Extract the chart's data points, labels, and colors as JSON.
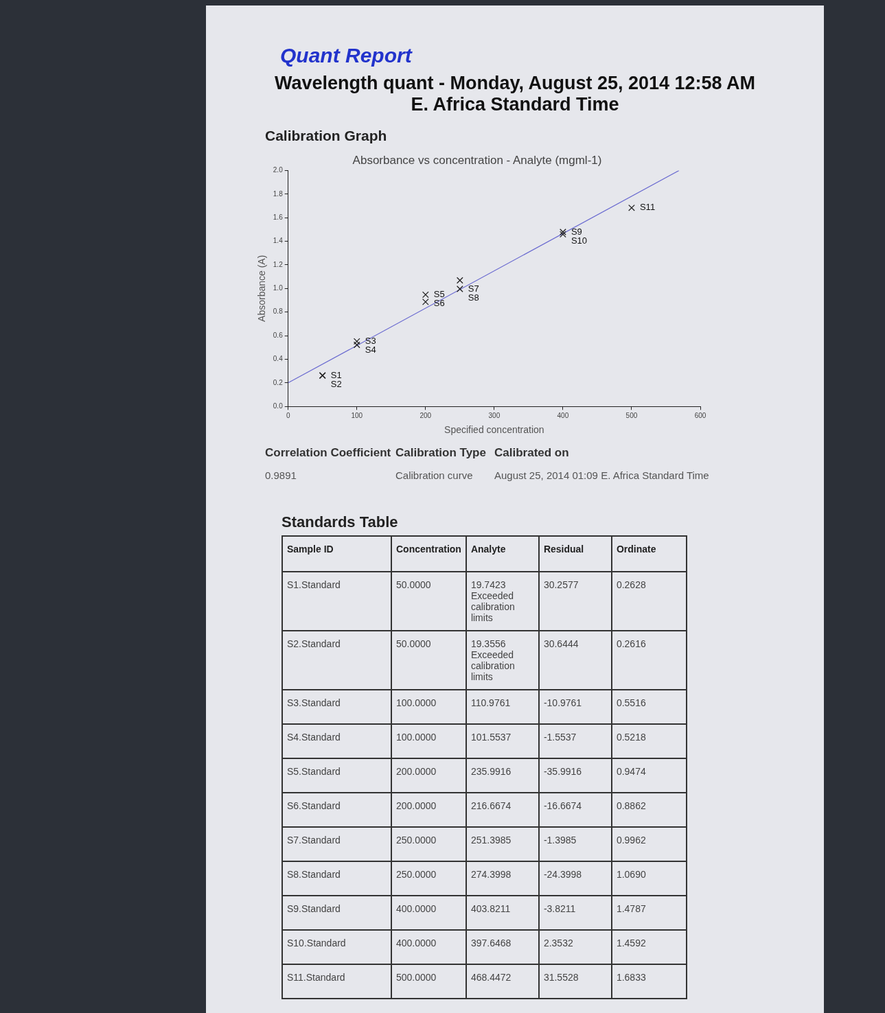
{
  "chart_data": [
    {
      "type": "scatter",
      "title": "Absorbance vs concentration - Analyte (mgml-1)",
      "xlabel": "Specified concentration",
      "ylabel": "Absorbance (A)",
      "annotations": [
        "Quant Report",
        "Wavelength quant - Monday, August 25, 2014 12:58 AM E. Africa Standard Time",
        "Calibration Graph",
        "Correlation Coefficient",
        "0.9891",
        "Calibration Type",
        "Calibration curve",
        "Calibrated on",
        "August 25, 2014 01:09 E. Africa Standard Time"
      ],
      "xlim": [
        0,
        600
      ],
      "xticks": [
        0,
        100,
        200,
        300,
        400,
        500,
        600
      ],
      "ylim": [
        0,
        2
      ],
      "yticks": [
        {
          "value": 0,
          "label": "0.0"
        },
        0.2,
        0.4,
        0.6,
        0.8,
        {
          "value": 1,
          "label": "1.0"
        },
        1.2,
        1.4,
        1.6,
        1.8,
        {
          "value": 2,
          "label": "2.0"
        }
      ],
      "legend": false,
      "series": [
        {
          "type": "scatter",
          "marker": "cross",
          "color": "#222222",
          "x": [
            50,
            50,
            100,
            100,
            200,
            200,
            250,
            250,
            400,
            400,
            500
          ],
          "values": [
            0.2628,
            0.2616,
            0.5516,
            0.5218,
            0.9474,
            0.8862,
            0.9962,
            1.069,
            1.4787,
            1.4592,
            1.6833
          ],
          "value_labels": [
            "S1",
            "S2",
            "S3",
            "S4",
            "S5",
            "S6",
            "S7",
            "S8",
            "S9",
            "S10",
            "S11"
          ]
        },
        {
          "type": "line",
          "marker": "none",
          "color": "#6a6ad0",
          "x": [
            0,
            569
          ],
          "values": [
            0.2,
            2.0
          ]
        }
      ]
    },
    {
      "type": "other",
      "title": "Standards Table",
      "xlabel": "Sample ID",
      "categories": [
        "S1.Standard",
        "S2.Standard",
        "S3.Standard",
        "S4.Standard",
        "S5.Standard",
        "S6.Standard",
        "S7.Standard",
        "S8.Standard",
        "S9.Standard",
        "S10.Standard",
        "S11.Standard"
      ],
      "series": [
        {
          "name": "Concentration",
          "values": [
            50,
            50,
            100,
            100,
            200,
            200,
            250,
            250,
            400,
            400,
            500
          ],
          "value_labels": [
            "50.0000",
            "50.0000",
            "100.0000",
            "100.0000",
            "200.0000",
            "200.0000",
            "250.0000",
            "250.0000",
            "400.0000",
            "400.0000",
            "500.0000"
          ]
        },
        {
          "name": "Analyte",
          "values": [
            19.7423,
            19.3556,
            110.9761,
            101.5537,
            235.9916,
            216.6674,
            251.3985,
            274.3998,
            403.8211,
            397.6468,
            468.4472
          ],
          "value_labels": [
            "19.7423 Exceeded calibration limits",
            "19.3556 Exceeded calibration limits",
            "110.9761",
            "101.5537",
            "235.9916",
            "216.6674",
            "251.3985",
            "274.3998",
            "403.8211",
            "397.6468",
            "468.4472"
          ]
        },
        {
          "name": "Residual",
          "values": [
            30.2577,
            30.6444,
            -10.9761,
            -1.5537,
            -35.9916,
            -16.6674,
            -1.3985,
            -24.3998,
            -3.8211,
            2.3532,
            31.5528
          ],
          "value_labels": [
            "30.2577",
            "30.6444",
            "-10.9761",
            "-1.5537",
            "-35.9916",
            "-16.6674",
            "-1.3985",
            "-24.3998",
            "-3.8211",
            "2.3532",
            "31.5528"
          ]
        },
        {
          "name": "Ordinate",
          "values": [
            0.2628,
            0.2616,
            0.5516,
            0.5218,
            0.9474,
            0.8862,
            0.9962,
            1.069,
            1.4787,
            1.4592,
            1.6833
          ],
          "value_labels": [
            "0.2628",
            "0.2616",
            "0.5516",
            "0.5218",
            "0.9474",
            "0.8862",
            "0.9962",
            "1.0690",
            "1.4787",
            "1.4592",
            "1.6833"
          ]
        }
      ]
    }
  ]
}
